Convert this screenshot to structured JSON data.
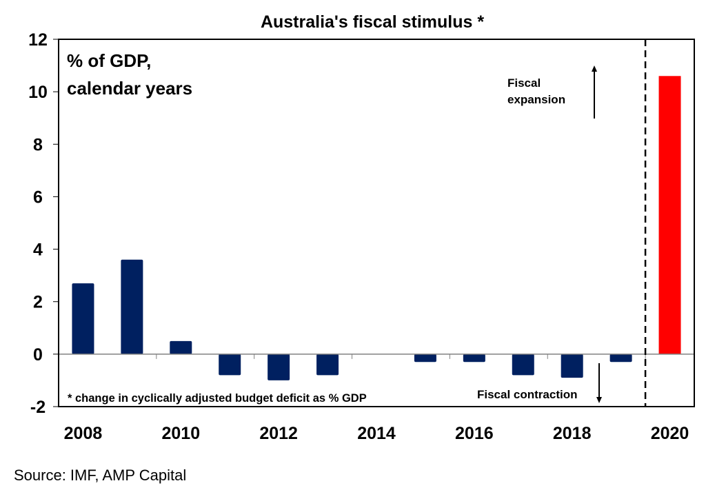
{
  "chart_data": {
    "type": "bar",
    "title": "Australia's fiscal stimulus *",
    "ylabel": "% of GDP,\ncalendar years",
    "ylabel_lines": [
      "% of GDP,",
      "calendar years"
    ],
    "categories": [
      "2008",
      "2009",
      "2010",
      "2011",
      "2012",
      "2013",
      "2014",
      "2015",
      "2016",
      "2017",
      "2018",
      "2019",
      "2020"
    ],
    "values": [
      2.7,
      3.6,
      0.5,
      -0.8,
      -1.0,
      -0.8,
      0,
      -0.3,
      -0.3,
      -0.8,
      -0.9,
      -0.3,
      10.6
    ],
    "x_tick_labels": [
      "2008",
      "2010",
      "2012",
      "2014",
      "2016",
      "2018",
      "2020"
    ],
    "y_tick_labels": [
      "12",
      "10",
      "8",
      "6",
      "4",
      "2",
      "0",
      "-2"
    ],
    "ylim": [
      -2,
      12
    ],
    "grid": false,
    "colors": {
      "default": "#002060",
      "highlight": "#FF0000"
    },
    "highlight_category": "2020",
    "divider_between": [
      "2019",
      "2020"
    ],
    "annotations": {
      "expansion": [
        "Fiscal",
        "expansion"
      ],
      "contraction": "Fiscal contraction",
      "footnote": "* change in cyclically adjusted budget deficit as % GDP"
    }
  },
  "source": "Source: IMF, AMP Capital"
}
